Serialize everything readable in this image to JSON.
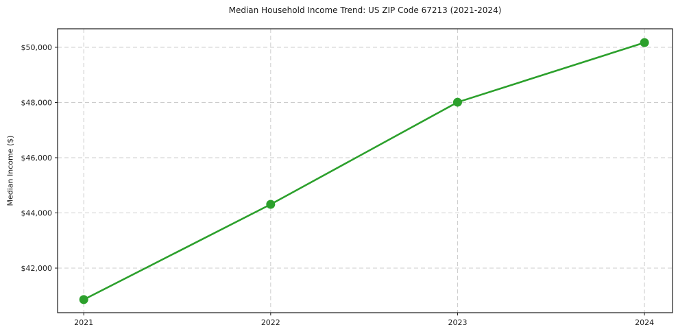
{
  "chart_data": {
    "type": "line",
    "title": "Median Household Income Trend: US ZIP Code 67213 (2021-2024)",
    "xlabel": "",
    "ylabel": "Median Income ($)",
    "x": [
      2021,
      2022,
      2023,
      2024
    ],
    "x_tick_labels": [
      "2021",
      "2022",
      "2023",
      "2024"
    ],
    "values": [
      40860,
      44310,
      48010,
      50170
    ],
    "y_ticks": [
      42000,
      44000,
      46000,
      48000,
      50000
    ],
    "y_tick_labels": [
      "$42,000",
      "$44,000",
      "$46,000",
      "$48,000",
      "$50,000"
    ],
    "xlim": [
      2020.86,
      2024.15
    ],
    "ylim": [
      40385,
      50670
    ],
    "grid": true,
    "grid_style": "dashed",
    "legend": "none",
    "marker": "circle",
    "colors": {
      "line": "#2ca02c",
      "marker": "#2ca02c",
      "grid": "#cccccc",
      "axis": "#1a1a1a",
      "text": "#1a1a1a",
      "background": "#ffffff"
    }
  }
}
